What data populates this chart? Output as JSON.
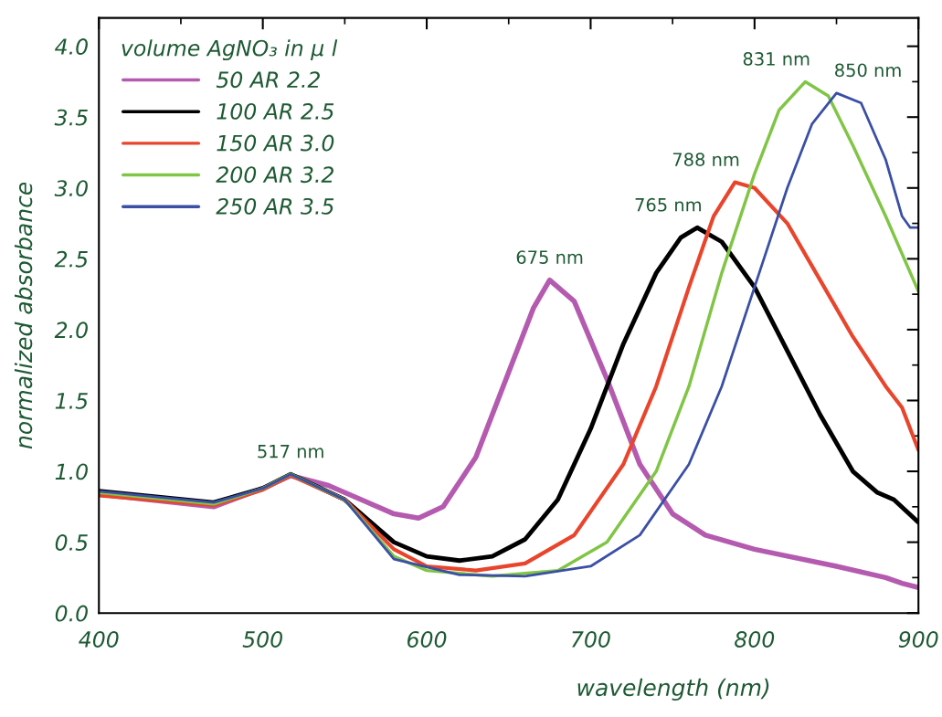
{
  "chart_data": {
    "type": "line",
    "xlabel": "wavelength (nm)",
    "ylabel": "normalized absorbance",
    "legend_title": "volume AgNO₃ in µ l",
    "xlim": [
      400,
      900
    ],
    "ylim": [
      0,
      4.2
    ],
    "xticks": [
      400,
      500,
      600,
      700,
      800,
      900
    ],
    "yticks": [
      {
        "value": 0,
        "label": "0.0"
      },
      {
        "value": 0.5,
        "label": "0.5"
      },
      {
        "value": 1,
        "label": "1.0"
      },
      {
        "value": 1.5,
        "label": "1.5"
      },
      {
        "value": 2,
        "label": "2.0"
      },
      {
        "value": 2.5,
        "label": "2.5"
      },
      {
        "value": 3,
        "label": "3.0"
      },
      {
        "value": 3.5,
        "label": "3.5"
      },
      {
        "value": 4,
        "label": "4.0"
      }
    ],
    "grid": false,
    "legend": "top left",
    "marker": "none",
    "line_style": "solid",
    "series": [
      {
        "name": "50 AR 2.2",
        "color": "#b45bb0",
        "x": [
          400,
          430,
          470,
          500,
          517,
          540,
          560,
          580,
          595,
          610,
          630,
          650,
          665,
          675,
          690,
          710,
          730,
          750,
          770,
          800,
          850,
          880,
          890,
          900
        ],
        "values": [
          0.84,
          0.8,
          0.75,
          0.88,
          0.97,
          0.9,
          0.8,
          0.7,
          0.67,
          0.75,
          1.1,
          1.7,
          2.15,
          2.35,
          2.2,
          1.65,
          1.05,
          0.7,
          0.55,
          0.45,
          0.33,
          0.25,
          0.21,
          0.18
        ]
      },
      {
        "name": "100 AR 2.5",
        "color": "#000000",
        "x": [
          400,
          470,
          500,
          517,
          550,
          580,
          600,
          620,
          640,
          660,
          680,
          700,
          720,
          740,
          755,
          765,
          780,
          800,
          820,
          840,
          860,
          875,
          885,
          900
        ],
        "values": [
          0.86,
          0.78,
          0.88,
          0.98,
          0.8,
          0.5,
          0.4,
          0.37,
          0.4,
          0.52,
          0.8,
          1.3,
          1.9,
          2.4,
          2.65,
          2.72,
          2.62,
          2.3,
          1.85,
          1.4,
          1.0,
          0.85,
          0.8,
          0.64
        ]
      },
      {
        "name": "150 AR 3.0",
        "color": "#e8452c",
        "x": [
          400,
          470,
          500,
          517,
          550,
          580,
          600,
          630,
          660,
          690,
          720,
          740,
          760,
          775,
          788,
          800,
          820,
          840,
          860,
          880,
          890,
          900
        ],
        "values": [
          0.83,
          0.76,
          0.87,
          0.97,
          0.8,
          0.45,
          0.33,
          0.3,
          0.35,
          0.55,
          1.05,
          1.6,
          2.3,
          2.8,
          3.04,
          3.0,
          2.75,
          2.35,
          1.95,
          1.6,
          1.45,
          1.15
        ]
      },
      {
        "name": "200 AR 3.2",
        "color": "#80c545",
        "x": [
          400,
          470,
          500,
          517,
          550,
          580,
          600,
          640,
          680,
          710,
          740,
          760,
          780,
          800,
          815,
          831,
          845,
          860,
          880,
          900
        ],
        "values": [
          0.85,
          0.77,
          0.88,
          0.98,
          0.8,
          0.4,
          0.3,
          0.26,
          0.3,
          0.5,
          1.0,
          1.6,
          2.4,
          3.1,
          3.55,
          3.75,
          3.65,
          3.3,
          2.8,
          2.27
        ]
      },
      {
        "name": "250 AR 3.5",
        "color": "#3a4fa5",
        "x": [
          400,
          470,
          500,
          517,
          550,
          580,
          620,
          660,
          700,
          730,
          760,
          780,
          800,
          820,
          835,
          850,
          865,
          880,
          890,
          895,
          900
        ],
        "values": [
          0.86,
          0.78,
          0.88,
          0.98,
          0.8,
          0.38,
          0.27,
          0.26,
          0.33,
          0.55,
          1.05,
          1.6,
          2.3,
          3.0,
          3.45,
          3.67,
          3.6,
          3.2,
          2.8,
          2.72,
          2.72
        ]
      }
    ],
    "annotations": [
      {
        "text": "517 nm",
        "x": 517,
        "y": 0.98
      },
      {
        "text": "675 nm",
        "x": 675,
        "y": 2.35
      },
      {
        "text": "765 nm",
        "x": 765,
        "y": 2.72
      },
      {
        "text": "788 nm",
        "x": 788,
        "y": 3.04
      },
      {
        "text": "831 nm",
        "x": 831,
        "y": 3.75
      },
      {
        "text": "850 nm",
        "x": 850,
        "y": 3.67
      }
    ]
  }
}
